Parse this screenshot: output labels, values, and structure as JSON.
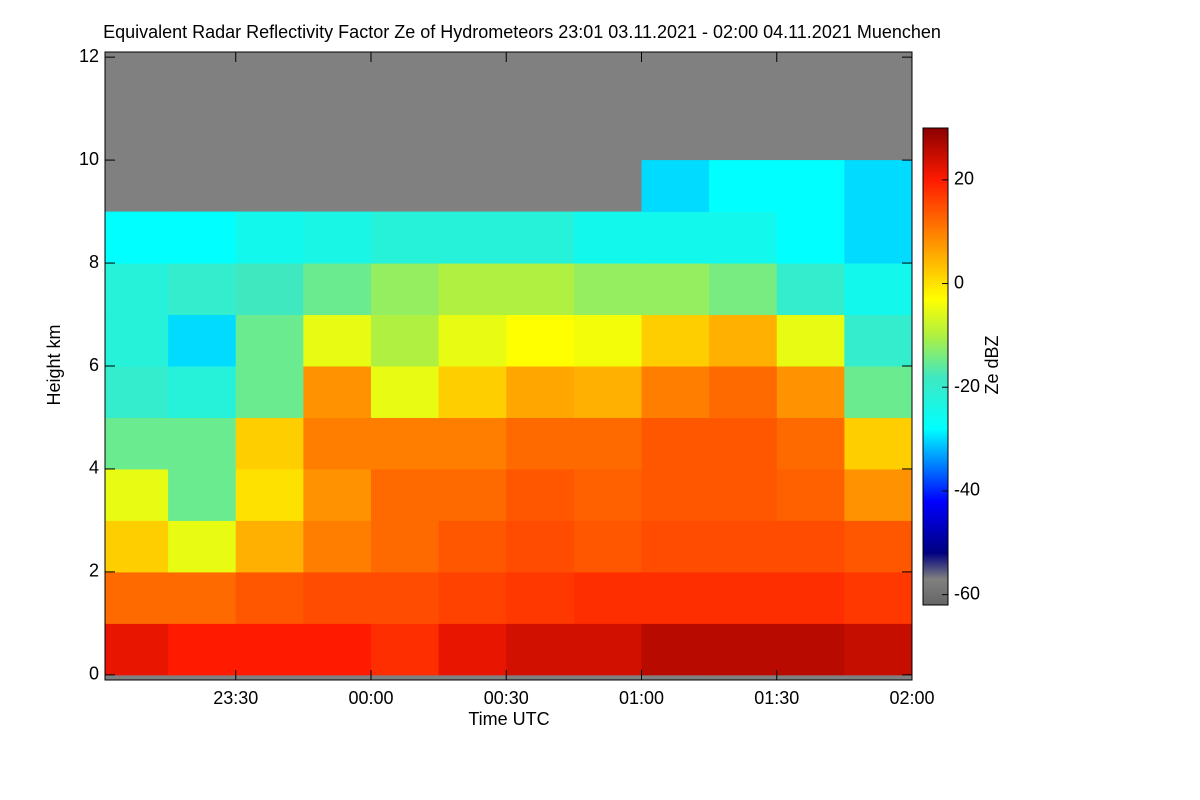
{
  "chart_data": {
    "type": "heatmap",
    "title": "Equivalent Radar Reflectivity Factor Ze of Hydrometeors   23:01 03.11.2021 - 02:00 04.11.2021 Muenchen",
    "x_label": "Time UTC",
    "y_label": "Height km",
    "colorbar_label": "Ze dBZ",
    "x_bins": [
      -1.0,
      -0.75,
      -0.5,
      -0.25,
      0,
      0.25,
      0.5,
      0.75,
      1.0,
      1.25,
      1.5,
      1.75,
      2.0
    ],
    "y_bins": [
      0,
      1,
      2,
      3,
      4,
      5,
      6,
      7,
      8,
      9,
      10,
      11,
      12
    ],
    "values": [
      [
        22,
        20,
        20,
        20,
        18,
        22,
        24,
        24,
        26,
        26,
        26,
        25
      ],
      [
        12,
        12,
        14,
        15,
        15,
        16,
        17,
        18,
        18,
        18,
        18,
        17
      ],
      [
        2,
        -5,
        5,
        10,
        12,
        14,
        15,
        14,
        15,
        15,
        15,
        14
      ],
      [
        -5,
        -15,
        0,
        8,
        12,
        12,
        14,
        13,
        14,
        14,
        13,
        8
      ],
      [
        -15,
        -15,
        2,
        10,
        10,
        10,
        12,
        12,
        14,
        14,
        12,
        2
      ],
      [
        -20,
        -22,
        -15,
        8,
        -5,
        2,
        6,
        5,
        10,
        12,
        8,
        -15
      ],
      [
        -22,
        -30,
        -15,
        -5,
        -10,
        -5,
        -3,
        -4,
        2,
        5,
        -5,
        -20
      ],
      [
        -22,
        -20,
        -18,
        -15,
        -12,
        -10,
        -10,
        -12,
        -12,
        -14,
        -20,
        -25
      ],
      [
        -28,
        -28,
        -25,
        -24,
        -22,
        -22,
        -22,
        -25,
        -25,
        -25,
        -28,
        -30
      ],
      [
        null,
        null,
        null,
        null,
        null,
        null,
        null,
        null,
        -30,
        -28,
        -28,
        -30
      ],
      [
        null,
        null,
        null,
        null,
        null,
        null,
        null,
        null,
        null,
        null,
        null,
        null
      ],
      [
        null,
        null,
        null,
        null,
        null,
        null,
        null,
        null,
        null,
        null,
        null,
        null
      ]
    ],
    "xlim": [
      -0.9833,
      2.0
    ],
    "xticks": [
      {
        "value": -0.5,
        "label": "23:30"
      },
      {
        "value": 0,
        "label": "00:00"
      },
      {
        "value": 0.5,
        "label": "00:30"
      },
      {
        "value": 1,
        "label": "01:00"
      },
      {
        "value": 1.5,
        "label": "01:30"
      },
      {
        "value": 2,
        "label": "02:00"
      }
    ],
    "ylim": [
      -0.1,
      12.1
    ],
    "yticks": [
      0,
      2,
      4,
      6,
      8,
      10,
      12
    ],
    "clim": [
      -62,
      30
    ],
    "cticks": [
      -60,
      -40,
      -20,
      0,
      20
    ],
    "colorscale": [
      [
        -62,
        "#666666"
      ],
      [
        -57,
        "#808080"
      ],
      [
        -52,
        "#000080"
      ],
      [
        -42,
        "#0000ff"
      ],
      [
        -28,
        "#00ffff"
      ],
      [
        -18,
        "#40e8c0"
      ],
      [
        -10,
        "#b0f040"
      ],
      [
        -3,
        "#ffff00"
      ],
      [
        5,
        "#ffb000"
      ],
      [
        12,
        "#ff6a00"
      ],
      [
        20,
        "#ff1a00"
      ],
      [
        30,
        "#8b0000"
      ]
    ],
    "missing_color": "#808080"
  }
}
